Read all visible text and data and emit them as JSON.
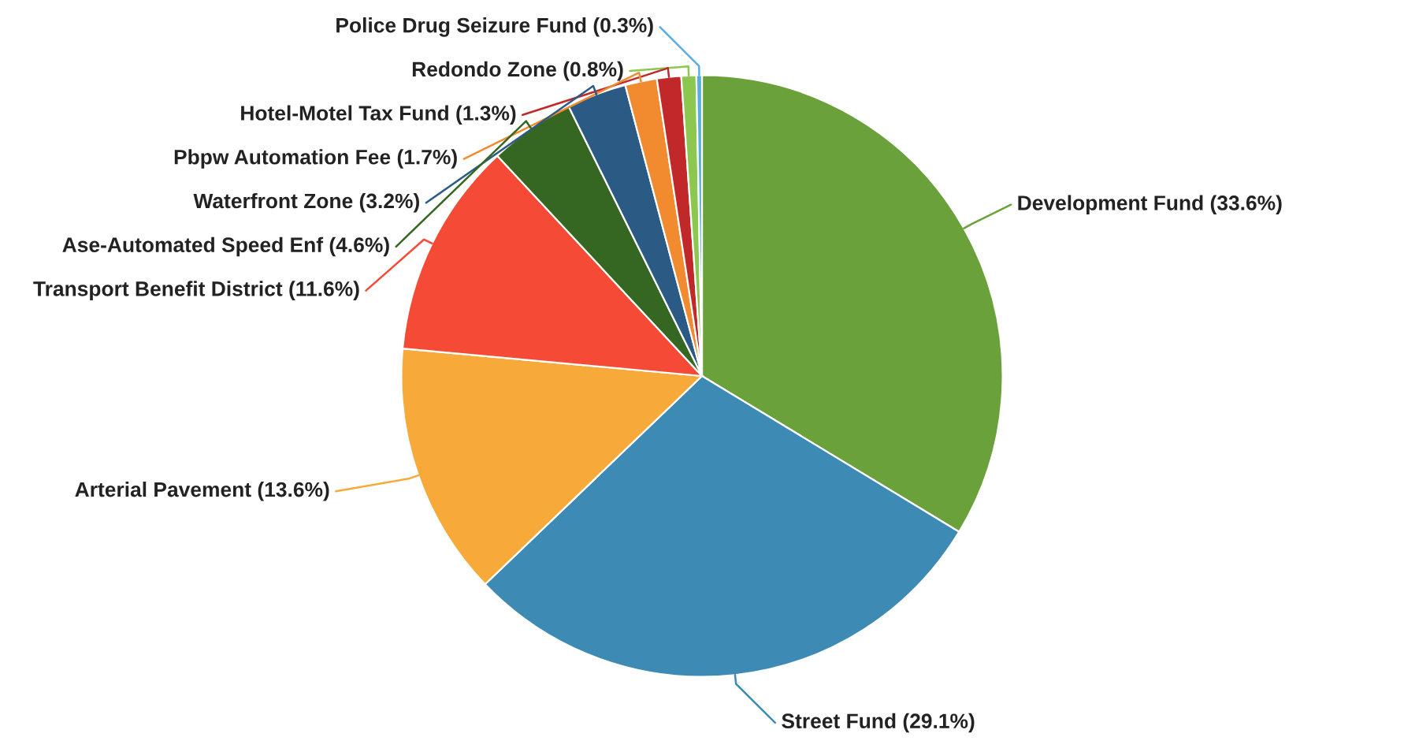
{
  "chart_data": {
    "type": "pie",
    "categories": [
      "Development Fund (33.6%)",
      "Street Fund (29.1%)",
      "Arterial Pavement (13.6%)",
      "Transport Benefit District (11.6%)",
      "Ase-Automated Speed Enf (4.6%)",
      "Waterfront Zone (3.2%)",
      "Pbpw Automation Fee (1.7%)",
      "Hotel-Motel Tax Fund (1.3%)",
      "Redondo Zone (0.8%)",
      "Police Drug Seizure Fund (0.3%)"
    ],
    "values": [
      33.6,
      29.1,
      13.6,
      11.6,
      4.6,
      3.2,
      1.7,
      1.3,
      0.8,
      0.3
    ],
    "colors": [
      "#6aa13a",
      "#3d8ab5",
      "#f7aa3a",
      "#f44a36",
      "#356723",
      "#2b5a85",
      "#f28a30",
      "#c0282a",
      "#8cc850",
      "#5aaedf"
    ]
  }
}
